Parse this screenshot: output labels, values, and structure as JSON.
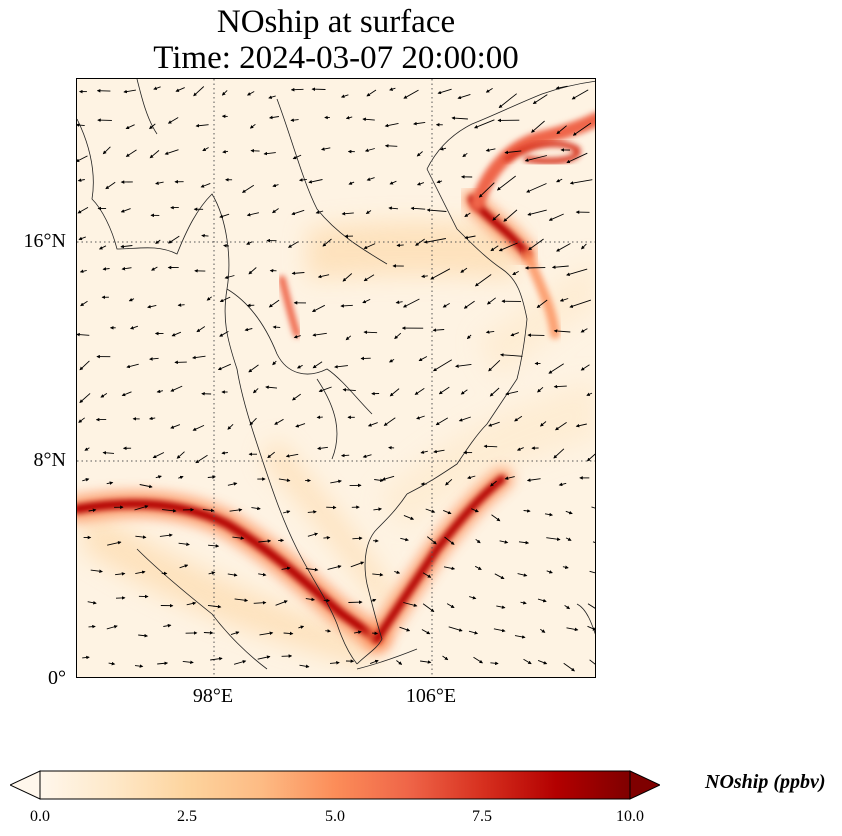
{
  "title": {
    "line1": "NOship at surface",
    "line2": "Time: 2024-03-07 20:00:00"
  },
  "axes": {
    "lat_labels": [
      "16°N",
      "8°N",
      "0°"
    ],
    "lon_labels": [
      "98°E",
      "106°E"
    ],
    "gridlines": "dotted"
  },
  "colorbar": {
    "label": "NOship (ppbv)",
    "ticks": [
      "0.0",
      "2.5",
      "5.0",
      "7.5",
      "10.0"
    ],
    "colormap": "OrRd",
    "colors": [
      "#fff7ec",
      "#fee8c8",
      "#fdd49e",
      "#fdbb84",
      "#fc8d59",
      "#ef6548",
      "#d7301f",
      "#b30000",
      "#7f0000"
    ],
    "extend": "both"
  },
  "map": {
    "features": [
      "coastlines",
      "country-borders",
      "wind-vectors",
      "ship-emission-plumes"
    ]
  }
}
